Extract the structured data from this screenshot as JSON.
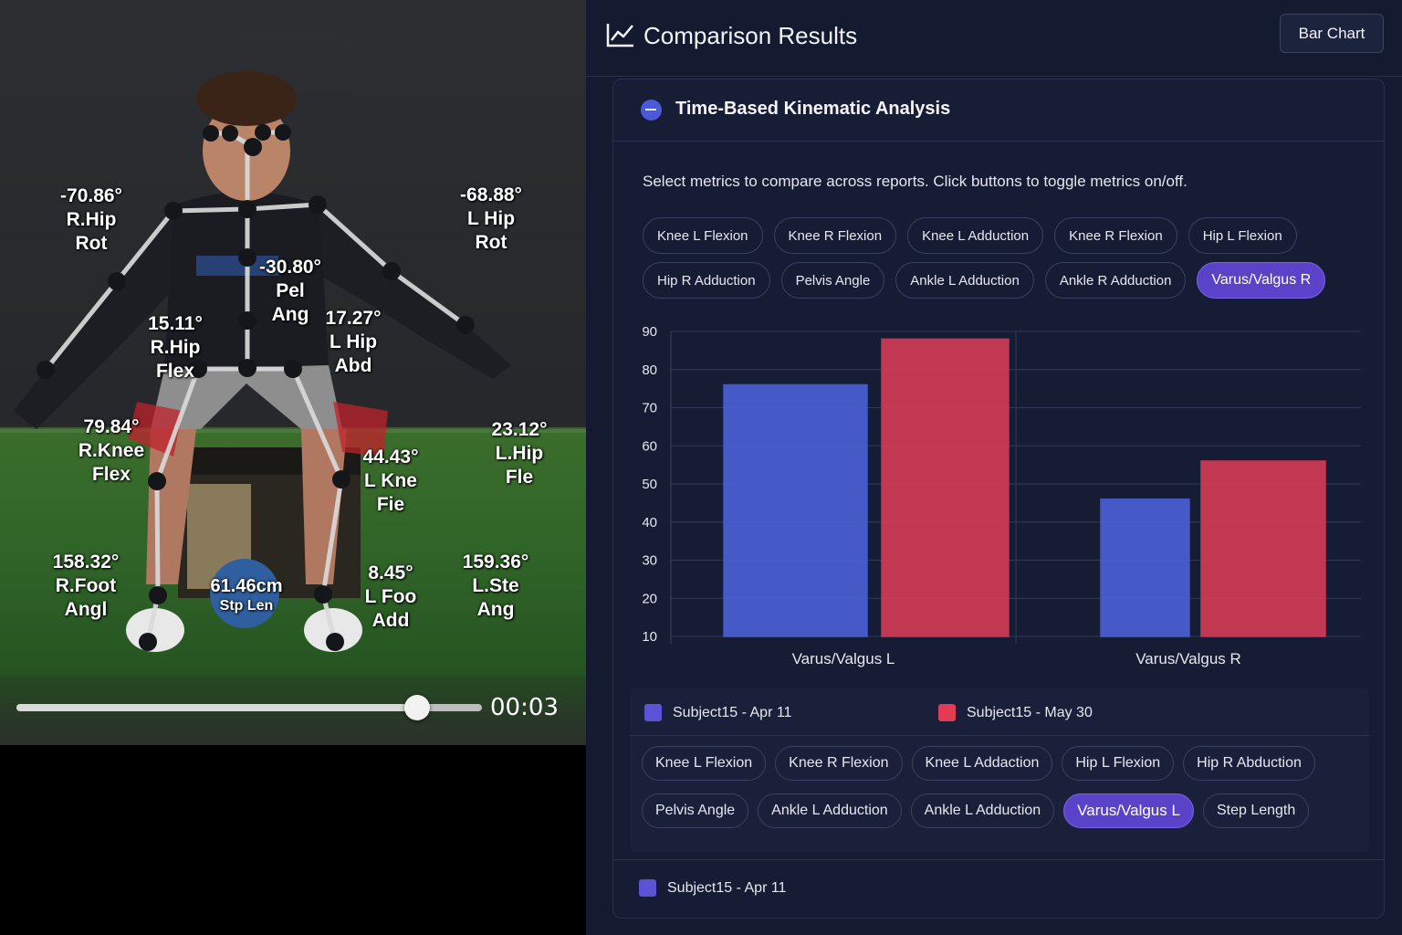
{
  "video": {
    "time": "00:03",
    "progress": 0.86,
    "angle_labels": [
      {
        "id": "r-hip-rot",
        "value": "-70.86°",
        "name": "R.Hip",
        "name2": "Rot"
      },
      {
        "id": "l-hip-rot",
        "value": "-68.88°",
        "name": "L Hip",
        "name2": "Rot"
      },
      {
        "id": "pelvis",
        "value": "-30.80°",
        "name": "Pel",
        "name2": "Ang"
      },
      {
        "id": "r-hip-flex",
        "value": "15.11°",
        "name": "R.Hip",
        "name2": "Flex"
      },
      {
        "id": "l-hip-abd",
        "value": "17.27°",
        "name": "L Hip",
        "name2": "Abd"
      },
      {
        "id": "r-knee-flex",
        "value": "79.84°",
        "name": "R.Knee",
        "name2": "Flex"
      },
      {
        "id": "l-knee-flex",
        "value": "44.43°",
        "name": "L Kne",
        "name2": "Fie"
      },
      {
        "id": "l-hip-flex",
        "value": "23.12°",
        "name": "L.Hip",
        "name2": "Fle"
      },
      {
        "id": "r-foot-angle",
        "value": "158.32°",
        "name": "R.Foot",
        "name2": "Angl"
      },
      {
        "id": "step-length",
        "value": "61.46cm",
        "name": "Stp Len",
        "name2": ""
      },
      {
        "id": "l-foot-add",
        "value": "8.45°",
        "name": "L Foo",
        "name2": "Add"
      },
      {
        "id": "l-step-angle",
        "value": "159.36°",
        "name": "L.Ste",
        "name2": "Ang"
      }
    ]
  },
  "header": {
    "title": "Comparison Results",
    "icon": "line-chart-icon",
    "view_button": "Bar Chart"
  },
  "card": {
    "title": "Time-Based Kinematic Analysis",
    "icon": "arrow-right-circle-icon",
    "instructions": "Select metrics to compare across reports. Click buttons to toggle metrics on/off.",
    "metric_rows": [
      [
        {
          "label": "Knee L Flexion",
          "active": false
        },
        {
          "label": "Knee R Flexion",
          "active": false
        },
        {
          "label": "Knee L Adduction",
          "active": false
        },
        {
          "label": "Knee R Flexion",
          "active": false
        },
        {
          "label": "Hip L Flexion",
          "active": false
        }
      ],
      [
        {
          "label": "Hip R Adduction",
          "active": false
        },
        {
          "label": "Pelvis Angle",
          "active": false
        },
        {
          "label": "Ankle L Adduction",
          "active": false
        },
        {
          "label": "Ankle R Adduction",
          "active": false
        },
        {
          "label": "Varus/Valgus R",
          "active": true
        }
      ]
    ]
  },
  "chart_data": {
    "type": "bar",
    "categories": [
      "Varus/Valgus L",
      "Varus/Valgus R"
    ],
    "series": [
      {
        "name": "Subject15 - Apr 11",
        "values": [
          76,
          46
        ],
        "color": "#4a5fd4"
      },
      {
        "name": "Subject15 - May 30",
        "values": [
          88,
          56
        ],
        "color": "#d13a55"
      }
    ],
    "y_ticks": [
      10,
      20,
      30,
      40,
      50,
      60,
      70,
      80,
      90
    ],
    "ylim": [
      10,
      90
    ],
    "grid": true,
    "legend_position": "bottom"
  },
  "legend": {
    "items": [
      {
        "label": "Subject15 - Apr 11",
        "color": "#5b53d6"
      },
      {
        "label": "Subject15 - May 30",
        "color": "#e23b55"
      }
    ],
    "metric_rows": [
      [
        {
          "label": "Knee  L Flexion",
          "active": false
        },
        {
          "label": "Knee R Flexion",
          "active": false
        },
        {
          "label": "Knee L Addaction",
          "active": false
        },
        {
          "label": "Hip L Flexion",
          "active": false
        },
        {
          "label": "Hip R Abduction",
          "active": false
        }
      ],
      [
        {
          "label": "Pelvis Angle",
          "active": false
        },
        {
          "label": "Ankle L Adduction",
          "active": false
        },
        {
          "label": "Ankle L Adduction",
          "active": false
        },
        {
          "label": "Varus/Valgus L",
          "active": true
        },
        {
          "label": "Step Length",
          "active": false
        }
      ]
    ]
  },
  "footer_legend": {
    "label": "Subject15 - Apr 11",
    "color": "#5b53d6"
  }
}
